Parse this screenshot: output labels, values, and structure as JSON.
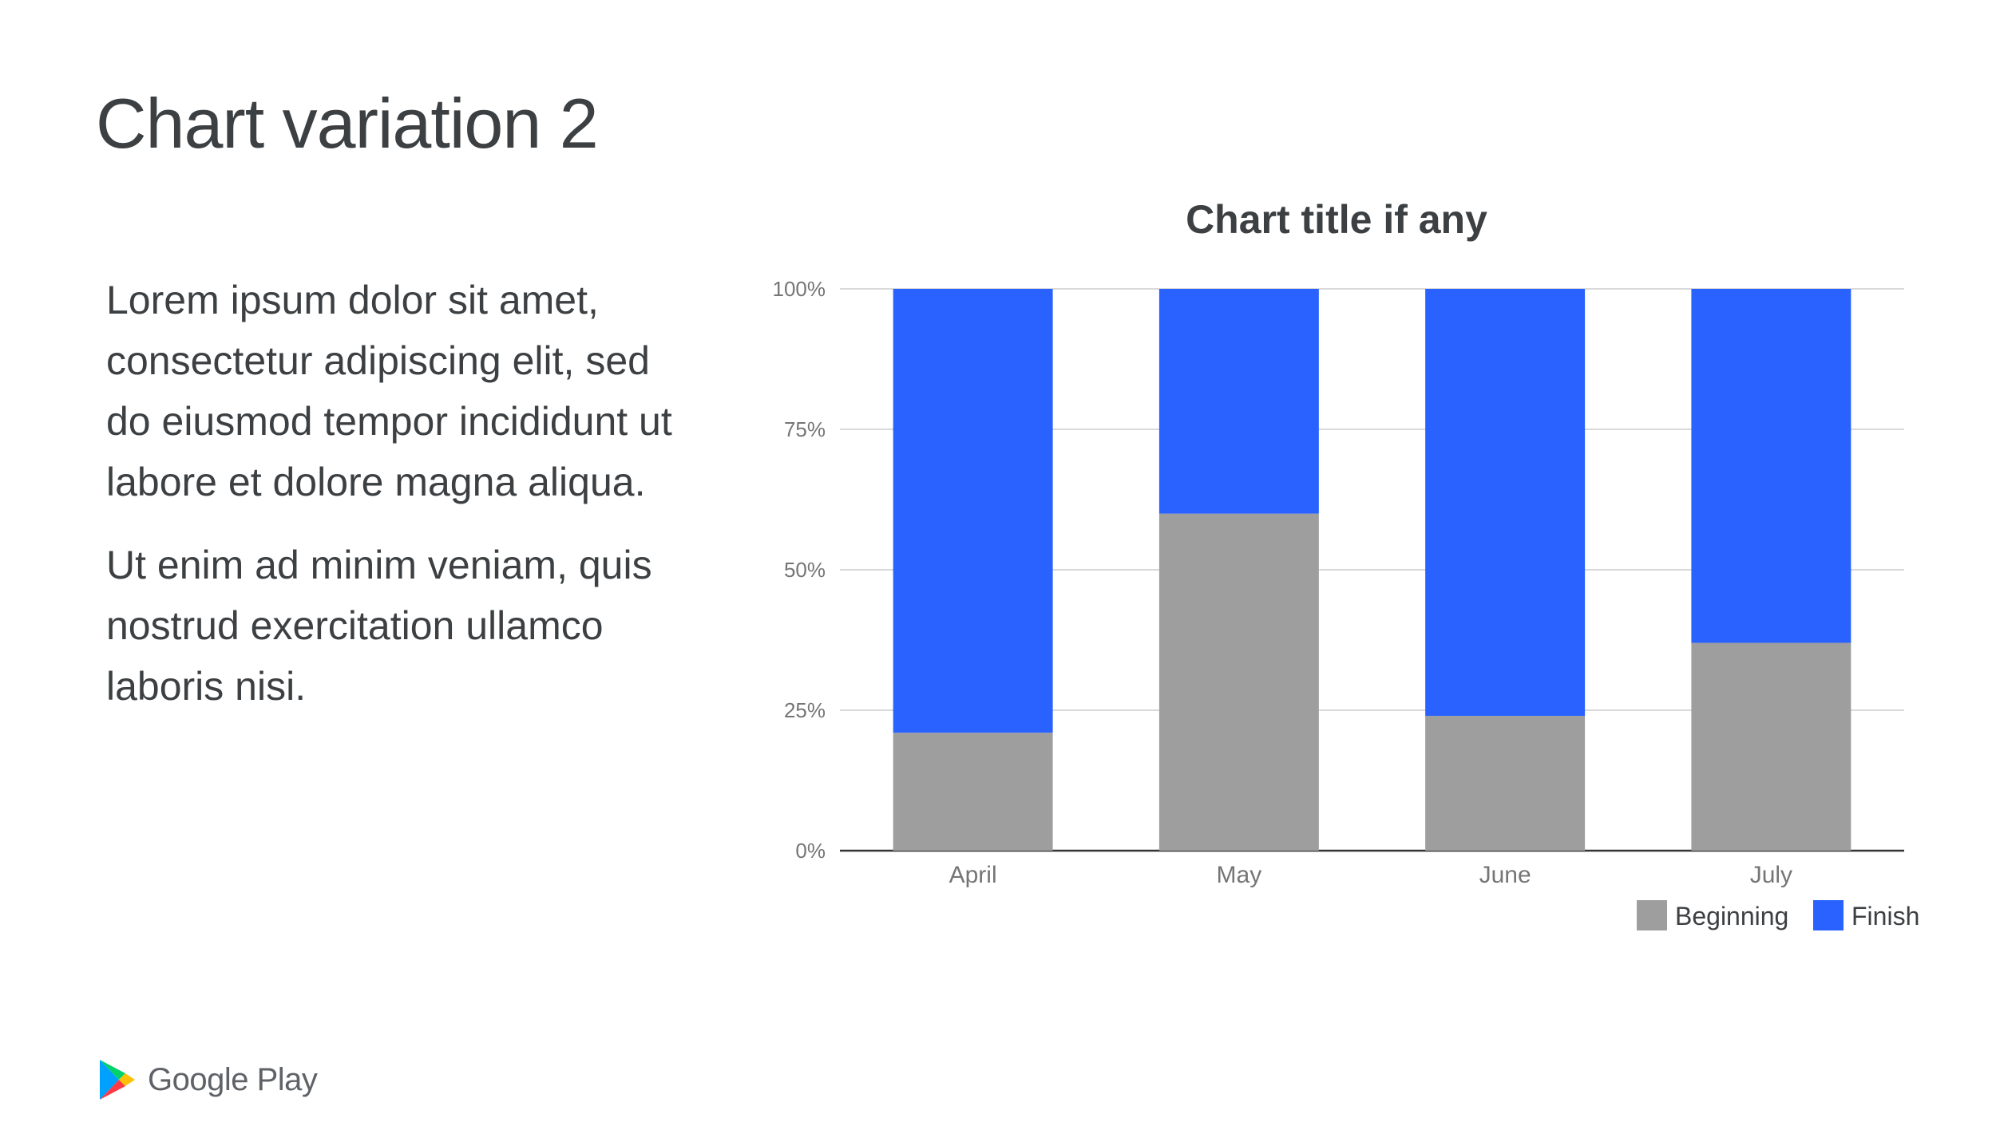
{
  "slide": {
    "title": "Chart variation 2",
    "paragraphs": [
      "Lorem ipsum dolor sit amet, consectetur adipiscing elit, sed do eiusmod tempor incididunt ut labore et dolore magna aliqua.",
      "Ut enim ad minim veniam, quis nostrud exercitation ullamco laboris nisi."
    ]
  },
  "logo": {
    "text": "Google Play",
    "icon": "google-play-icon"
  },
  "chart_data": {
    "type": "bar",
    "stacked": "percent",
    "title": "Chart title if any",
    "categories": [
      "April",
      "May",
      "June",
      "July"
    ],
    "series": [
      {
        "name": "Beginning",
        "color": "#9e9e9e",
        "values": [
          21,
          60,
          24,
          37
        ]
      },
      {
        "name": "Finish",
        "color": "#2962ff",
        "values": [
          79,
          40,
          76,
          63
        ]
      }
    ],
    "ylim": [
      0,
      100
    ],
    "yticks": [
      "0%",
      "25%",
      "50%",
      "75%",
      "100%"
    ],
    "grid": true,
    "legend": "bottom-right",
    "xlabel": "",
    "ylabel": ""
  }
}
